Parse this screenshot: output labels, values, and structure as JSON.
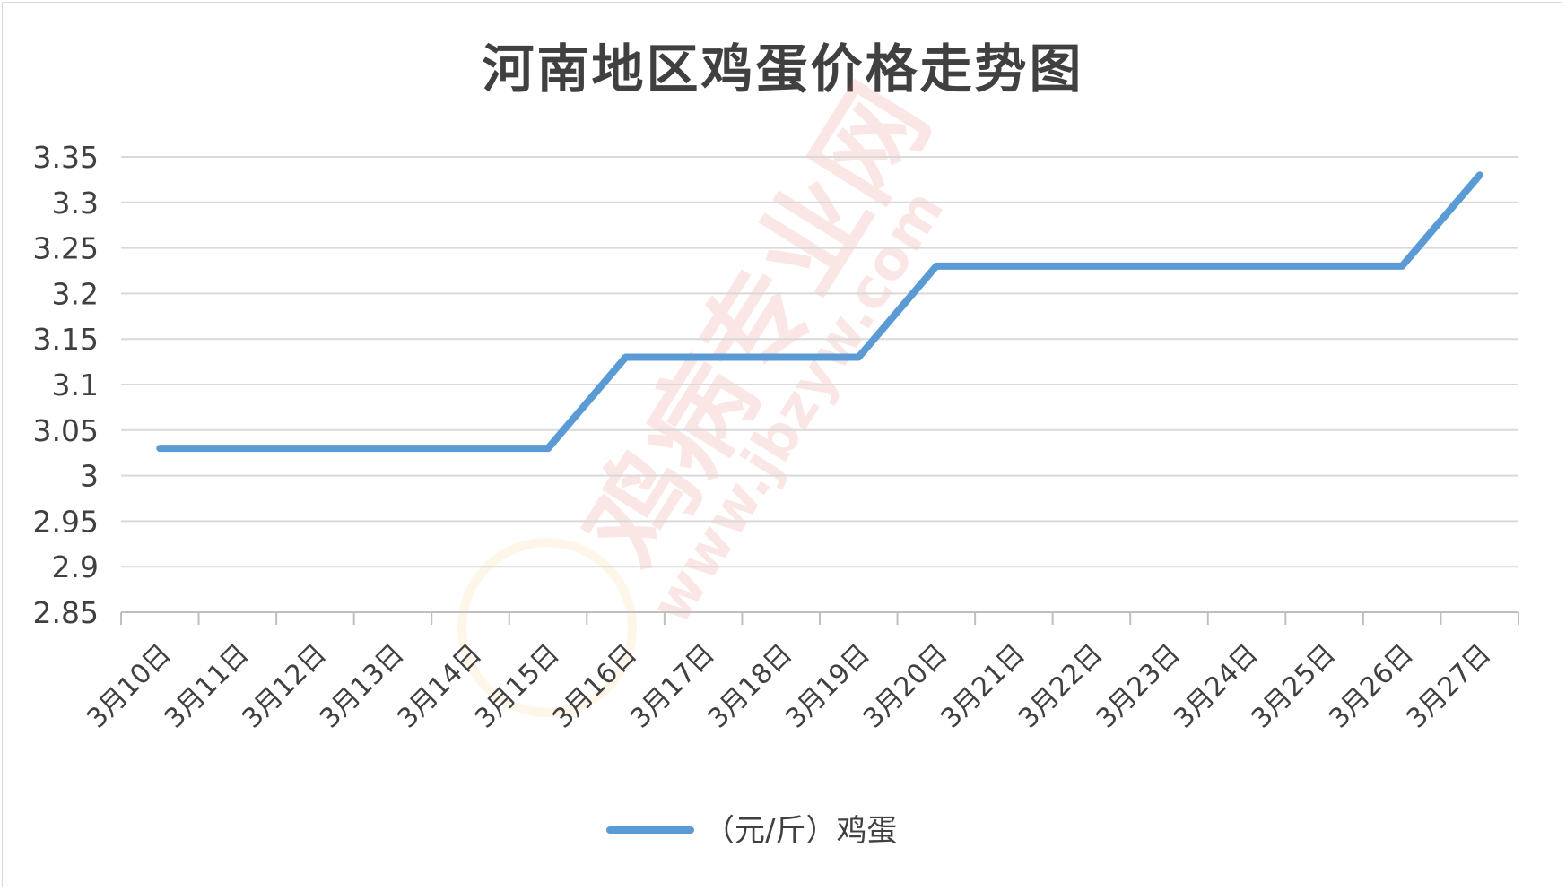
{
  "chart_data": {
    "type": "line",
    "title": "河南地区鸡蛋价格走势图",
    "categories": [
      "3月10日",
      "3月11日",
      "3月12日",
      "3月13日",
      "3月14日",
      "3月15日",
      "3月16日",
      "3月17日",
      "3月18日",
      "3月19日",
      "3月20日",
      "3月21日",
      "3月22日",
      "3月23日",
      "3月24日",
      "3月25日",
      "3月26日",
      "3月27日"
    ],
    "series": [
      {
        "name": "（元/斤）鸡蛋",
        "color": "#5b9bd5",
        "values": [
          3.03,
          3.03,
          3.03,
          3.03,
          3.03,
          3.03,
          3.13,
          3.13,
          3.13,
          3.13,
          3.23,
          3.23,
          3.23,
          3.23,
          3.23,
          3.23,
          3.23,
          3.33
        ]
      }
    ],
    "ylim": [
      2.85,
      3.35
    ],
    "yticks": [
      "2.85",
      "2.9",
      "2.95",
      "3",
      "3.05",
      "3.1",
      "3.15",
      "3.2",
      "3.25",
      "3.3",
      "3.35"
    ],
    "xlabel": "",
    "ylabel": "",
    "grid": true,
    "legend_position": "bottom"
  },
  "watermark": {
    "text": "鸡病专业网",
    "url": "www.jbzyw.com"
  }
}
